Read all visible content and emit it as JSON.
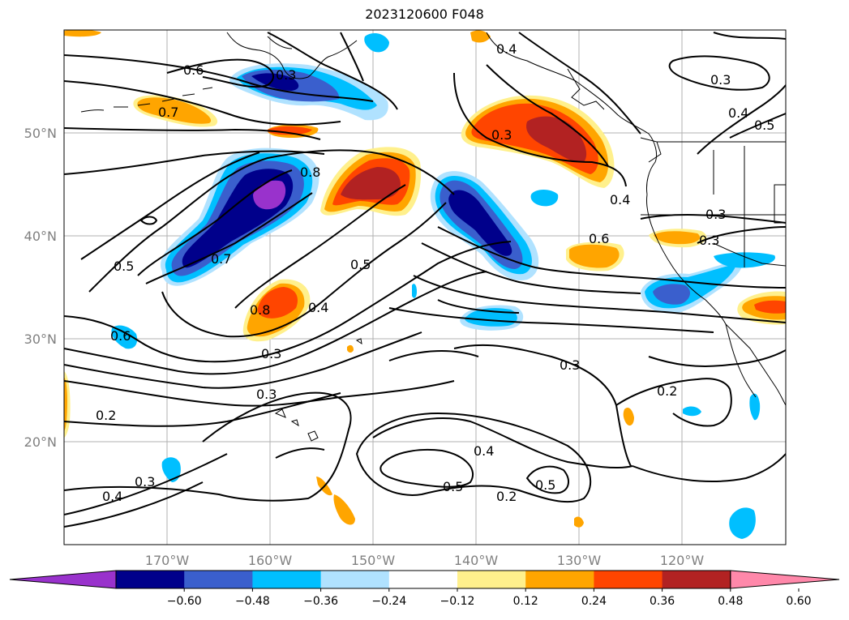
{
  "title": "2023120600 F048",
  "map": {
    "projection": "plate-carree",
    "lon_range": [
      -180,
      -110
    ],
    "lat_range": [
      10,
      60
    ],
    "lon_tick_labels": [
      "170°W",
      "160°W",
      "150°W",
      "140°W",
      "130°W",
      "120°W"
    ],
    "lat_tick_labels": [
      "50°N",
      "40°N",
      "30°N",
      "20°N"
    ],
    "contour_labels": [
      "0.6",
      "0.3",
      "0.7",
      "0.8",
      "0.5",
      "0.7",
      "0.8",
      "0.4",
      "0.3",
      "0.3",
      "0.5",
      "0.4",
      "0.3",
      "0.4",
      "0.3",
      "0.5",
      "0.4",
      "0.6",
      "0.3",
      "0.3",
      "0.6",
      "0.3",
      "0.2",
      "0.2",
      "0.4",
      "0.3",
      "0.4",
      "0.5",
      "0.5",
      "0.2"
    ],
    "colorbar": {
      "tick_labels": [
        "−0.60",
        "−0.48",
        "−0.36",
        "−0.24",
        "−0.12",
        "0.12",
        "0.24",
        "0.36",
        "0.48",
        "0.60"
      ],
      "colors": [
        "#9932cc",
        "#00008b",
        "#3a5fcd",
        "#00bfff",
        "#b0e2ff",
        "#ffffff",
        "#fff08c",
        "#ffa500",
        "#ff4500",
        "#b22222",
        "#ff88aa"
      ]
    }
  }
}
